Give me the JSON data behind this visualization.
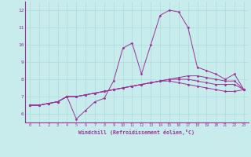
{
  "xlabel": "Windchill (Refroidissement éolien,°C)",
  "background_color": "#c8ecec",
  "line_color": "#993399",
  "grid_color": "#aadddd",
  "xlim": [
    -0.5,
    23.5
  ],
  "ylim": [
    5.5,
    12.5
  ],
  "xticks": [
    0,
    1,
    2,
    3,
    4,
    5,
    6,
    7,
    8,
    9,
    10,
    11,
    12,
    13,
    14,
    15,
    16,
    17,
    18,
    19,
    20,
    21,
    22,
    23
  ],
  "yticks": [
    6,
    7,
    8,
    9,
    10,
    11,
    12
  ],
  "series": [
    [
      6.5,
      6.5,
      6.6,
      6.7,
      7.0,
      5.7,
      6.2,
      6.7,
      6.9,
      7.9,
      9.8,
      10.1,
      8.3,
      10.0,
      11.7,
      12.0,
      11.9,
      11.0,
      8.7,
      8.5,
      8.3,
      8.0,
      8.3,
      7.4
    ],
    [
      6.5,
      6.5,
      6.6,
      6.7,
      7.0,
      7.0,
      7.1,
      7.2,
      7.3,
      7.4,
      7.5,
      7.6,
      7.7,
      7.8,
      7.9,
      8.0,
      8.1,
      8.2,
      8.2,
      8.1,
      8.0,
      7.9,
      7.9,
      7.4
    ],
    [
      6.5,
      6.5,
      6.6,
      6.7,
      7.0,
      7.0,
      7.1,
      7.2,
      7.3,
      7.4,
      7.5,
      7.6,
      7.7,
      7.8,
      7.9,
      8.0,
      8.0,
      8.0,
      7.9,
      7.8,
      7.7,
      7.7,
      7.7,
      7.4
    ],
    [
      6.5,
      6.5,
      6.6,
      6.7,
      7.0,
      7.0,
      7.1,
      7.2,
      7.3,
      7.4,
      7.5,
      7.6,
      7.7,
      7.8,
      7.9,
      7.9,
      7.8,
      7.7,
      7.6,
      7.5,
      7.4,
      7.3,
      7.3,
      7.4
    ]
  ]
}
